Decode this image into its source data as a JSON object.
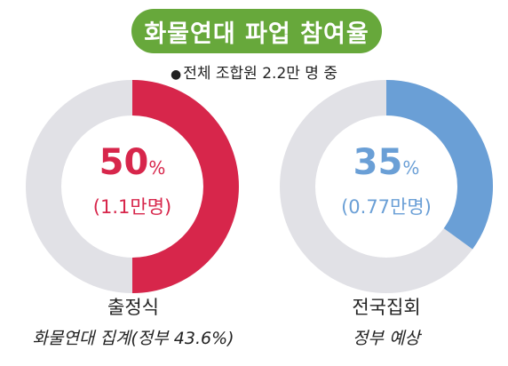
{
  "title": "화물연대 파업 참여율",
  "subtitle": "전체 조합원 2.2만 명 중",
  "chart_data": [
    {
      "type": "pie",
      "value": 50,
      "unit": "%",
      "sublabel": "(1.1만명)",
      "caption": "출정식",
      "caption_sub": "화물연대 집계(정부 43.6%)",
      "color": "#d7264b",
      "track_color": "#e1e1e6"
    },
    {
      "type": "pie",
      "value": 35,
      "unit": "%",
      "sublabel": "(0.77만명)",
      "caption": "전국집회",
      "caption_sub": "정부 예상",
      "color": "#6a9fd6",
      "track_color": "#e1e1e6"
    }
  ]
}
